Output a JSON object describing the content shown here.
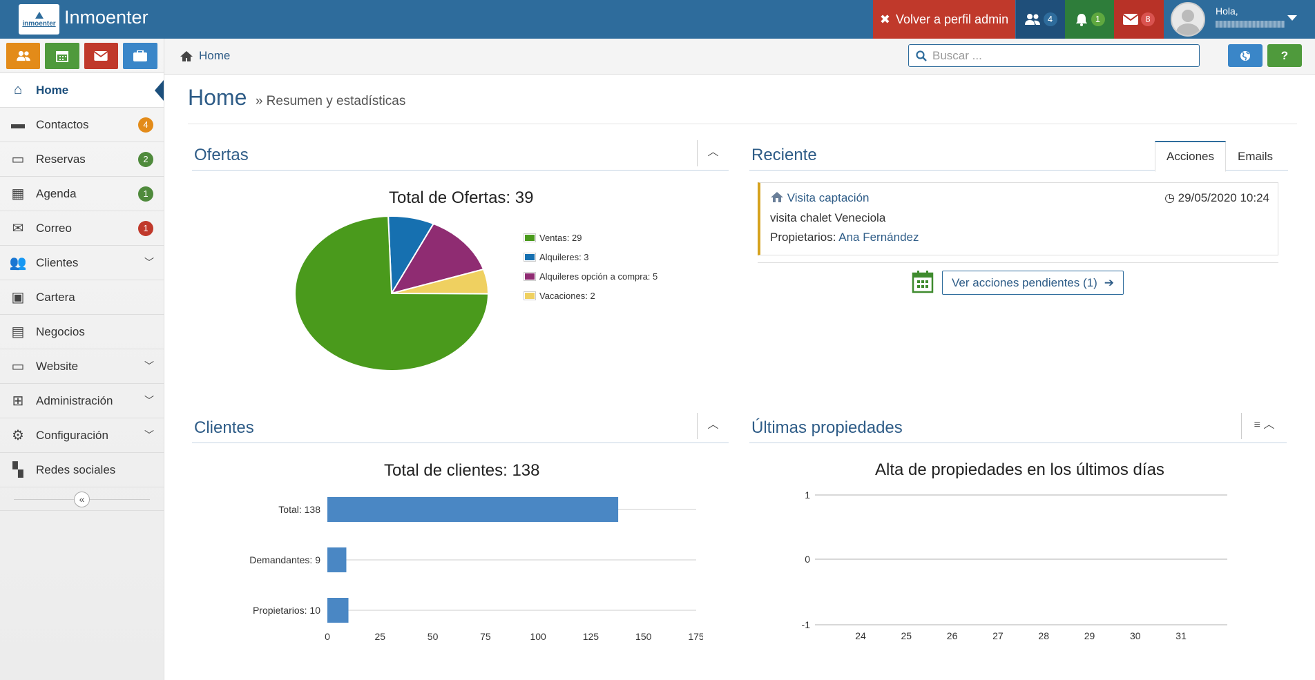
{
  "app": {
    "name": "Inmoenter",
    "logo_text": "inmoenter"
  },
  "topbar": {
    "admin_label": "Volver a perfil admin",
    "users_count": "4",
    "notif_count": "1",
    "mail_count": "8",
    "greeting": "Hola,",
    "colors": {
      "bar": "#2e6c9c",
      "admin": "#c0392b",
      "notif": "#2e8b3a",
      "mail": "#b83227"
    }
  },
  "quick_buttons": [
    {
      "icon": "users-icon",
      "color": "#e38b19"
    },
    {
      "icon": "calendar-icon",
      "color": "#4f9a3c"
    },
    {
      "icon": "envelope-icon",
      "color": "#c0392b"
    },
    {
      "icon": "briefcase-icon",
      "color": "#3a86c8"
    }
  ],
  "sidebar": {
    "items": [
      {
        "label": "Home",
        "icon": "home-icon",
        "active": true
      },
      {
        "label": "Contactos",
        "icon": "comment-icon",
        "badge": "4",
        "badge_color": "#e38b19"
      },
      {
        "label": "Reservas",
        "icon": "bed-icon",
        "badge": "2",
        "badge_color": "#4f8a3c"
      },
      {
        "label": "Agenda",
        "icon": "calendar-icon",
        "badge": "1",
        "badge_color": "#4f8a3c"
      },
      {
        "label": "Correo",
        "icon": "envelope-icon",
        "badge": "1",
        "badge_color": "#c0392b"
      },
      {
        "label": "Clientes",
        "icon": "users-icon",
        "submenu": true
      },
      {
        "label": "Cartera",
        "icon": "briefcase-icon"
      },
      {
        "label": "Negocios",
        "icon": "money-icon"
      },
      {
        "label": "Website",
        "icon": "desktop-icon",
        "submenu": true
      },
      {
        "label": "Administración",
        "icon": "sitemap-icon",
        "submenu": true
      },
      {
        "label": "Configuración",
        "icon": "gears-icon",
        "submenu": true
      },
      {
        "label": "Redes sociales",
        "icon": "share-icon"
      }
    ]
  },
  "breadcrumb": {
    "label": "Home"
  },
  "search": {
    "placeholder": "Buscar ..."
  },
  "page": {
    "title": "Home",
    "subtitle": "Resumen y estadísticas"
  },
  "panels": {
    "ofertas": {
      "title": "Ofertas"
    },
    "reciente": {
      "title": "Reciente",
      "tabs": [
        "Acciones",
        "Emails"
      ],
      "active_tab": "Acciones"
    },
    "clientes": {
      "title": "Clientes"
    },
    "ultimas": {
      "title": "Últimas propiedades"
    }
  },
  "activity": {
    "title": "Visita captación",
    "date": "29/05/2020 10:24",
    "description": "visita chalet Veneciola",
    "owners_label": "Propietarios:",
    "owner_name": "Ana Fernández"
  },
  "pending_button": {
    "label": "Ver acciones pendientes (1)"
  },
  "chart_data": [
    {
      "type": "pie",
      "title": "Total de Ofertas: 39",
      "slices": [
        {
          "label": "Ventas: 29",
          "value": 29,
          "color": "#4a9a1c"
        },
        {
          "label": "Alquileres: 3",
          "value": 3,
          "color": "#1670b0"
        },
        {
          "label": "Alquileres opción a compra: 5",
          "value": 5,
          "color": "#8f2c72"
        },
        {
          "label": "Vacaciones: 2",
          "value": 2,
          "color": "#efd060"
        }
      ],
      "legend": "right"
    },
    {
      "type": "bar",
      "orientation": "horizontal",
      "title": "Total de clientes: 138",
      "categories": [
        "Total: 138",
        "Demandantes: 9",
        "Propietarios: 10"
      ],
      "values": [
        138,
        9,
        10
      ],
      "xlim": [
        0,
        175
      ],
      "xticks": [
        "0",
        "25",
        "50",
        "75",
        "100",
        "125",
        "150",
        "175"
      ],
      "color": "#4a87c4"
    },
    {
      "type": "line",
      "title": "Alta de propiedades en los últimos días",
      "x": [
        "24",
        "25",
        "26",
        "27",
        "28",
        "29",
        "30",
        "31"
      ],
      "yticks": [
        "1",
        "0",
        "-1"
      ],
      "ylim": [
        -1,
        1
      ],
      "series": []
    }
  ]
}
